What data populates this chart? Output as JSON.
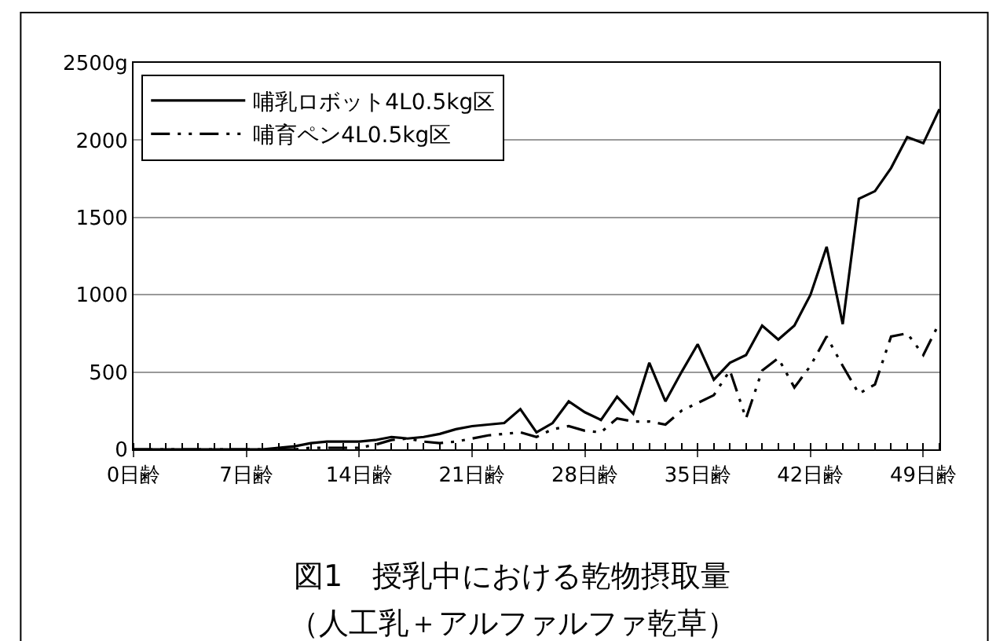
{
  "chart_data": {
    "type": "line",
    "title": "図1　授乳中における乾物摂取量",
    "subtitle": "（人工乳＋アルファルファ乾草）",
    "categories": [
      "0日齢",
      null,
      null,
      null,
      null,
      null,
      null,
      "7日齢",
      null,
      null,
      null,
      null,
      null,
      null,
      "14日齢",
      null,
      null,
      null,
      null,
      null,
      null,
      "21日齢",
      null,
      null,
      null,
      null,
      null,
      null,
      "28日齢",
      null,
      null,
      null,
      null,
      null,
      null,
      "35日齢",
      null,
      null,
      null,
      null,
      null,
      null,
      "42日齢",
      null,
      null,
      null,
      null,
      null,
      null,
      "49日齢",
      null
    ],
    "series": [
      {
        "name": "哺乳ロボット4L0.5kg区",
        "color": "#000000",
        "line_style": "solid",
        "values": [
          0,
          0,
          0,
          0,
          0,
          0,
          0,
          0,
          0,
          10,
          20,
          40,
          50,
          50,
          50,
          60,
          80,
          70,
          80,
          100,
          130,
          150,
          160,
          170,
          260,
          110,
          170,
          310,
          240,
          190,
          340,
          230,
          560,
          310,
          500,
          680,
          450,
          560,
          610,
          800,
          710,
          800,
          1000,
          1310,
          810,
          1620,
          1670,
          1820,
          2020,
          1980,
          2200
        ]
      },
      {
        "name": "哺育ペン4L0.5kg区",
        "color": "#000000",
        "line_style": "dashed",
        "values": [
          0,
          0,
          0,
          0,
          0,
          0,
          0,
          0,
          0,
          0,
          0,
          10,
          10,
          10,
          10,
          30,
          60,
          70,
          50,
          40,
          50,
          70,
          90,
          100,
          110,
          80,
          130,
          150,
          120,
          110,
          200,
          180,
          180,
          160,
          250,
          300,
          350,
          510,
          200,
          510,
          590,
          400,
          540,
          730,
          540,
          360,
          420,
          730,
          750,
          610,
          820
        ]
      }
    ],
    "ylim": [
      0,
      2500
    ],
    "yticks": [
      0,
      500,
      1000,
      1500,
      2000,
      {
        "value": 2500,
        "label": "2500g"
      }
    ],
    "grid": "y",
    "legend": "top left"
  }
}
